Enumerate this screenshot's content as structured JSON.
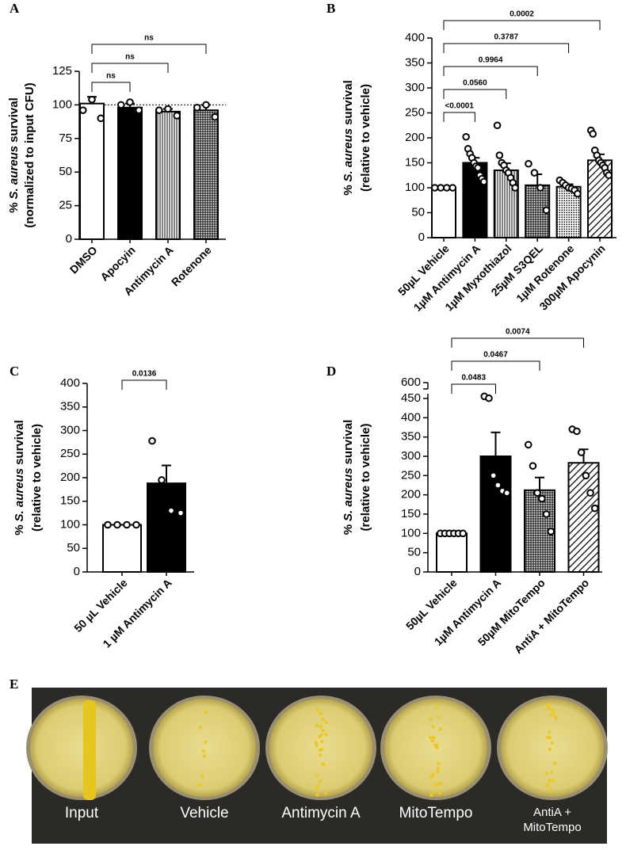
{
  "chart_data": [
    {
      "type": "bar",
      "panel": "A",
      "ylabel": [
        "%",
        "S. aureus",
        "survival"
      ],
      "ylabel2": "(normalized to input CFU)",
      "categories": [
        "DMSO",
        "Apocyin",
        "Antimycin A",
        "Rotenone"
      ],
      "values": [
        101,
        98,
        95,
        96
      ],
      "errors": [
        5,
        3,
        2,
        4
      ],
      "points": [
        [
          96,
          104,
          90
        ],
        [
          100,
          102,
          96
        ],
        [
          96,
          97,
          92
        ],
        [
          98,
          100,
          91
        ]
      ],
      "patterns": [
        "white",
        "black",
        "vlines",
        "checker"
      ],
      "ylim": [
        0,
        125
      ],
      "yticks": [
        0,
        25,
        50,
        75,
        100,
        125
      ],
      "ref_line": 100,
      "comparisons": [
        {
          "pair": [
            0,
            1
          ],
          "label": "ns"
        },
        {
          "pair": [
            0,
            2
          ],
          "label": "ns"
        },
        {
          "pair": [
            0,
            3
          ],
          "label": "ns"
        }
      ]
    },
    {
      "type": "bar",
      "panel": "B",
      "ylabel": [
        "%",
        "S. aureus",
        "survival"
      ],
      "ylabel2": "(relative to vehicle)",
      "categories": [
        "50µL Vehicle",
        "1µM Antimycin A",
        "1µM Myxothiazol",
        "25µM S3QEL",
        "1µM Rotenone",
        "300µM Apocynin"
      ],
      "values": [
        100,
        150,
        135,
        105,
        102,
        155
      ],
      "errors": [
        0,
        10,
        14,
        22,
        5,
        12
      ],
      "points": [
        [
          100,
          100,
          100,
          100
        ],
        [
          202,
          178,
          168,
          160,
          150,
          143,
          140,
          125,
          118,
          112
        ],
        [
          225,
          165,
          150,
          145,
          135,
          130,
          120,
          110,
          100
        ],
        [
          148,
          130,
          100,
          55
        ],
        [
          115,
          110,
          105,
          100,
          98,
          95,
          88
        ],
        [
          215,
          208,
          175,
          165,
          155,
          150,
          145,
          140,
          130,
          125
        ]
      ],
      "patterns": [
        "white",
        "black",
        "vlines",
        "checker",
        "dots",
        "hatch"
      ],
      "ylim": [
        0,
        400
      ],
      "yticks": [
        0,
        50,
        100,
        150,
        200,
        250,
        300,
        350,
        400
      ],
      "comparisons": [
        {
          "pair": [
            0,
            1
          ],
          "label": "<0.0001"
        },
        {
          "pair": [
            0,
            2
          ],
          "label": "0.0560"
        },
        {
          "pair": [
            0,
            3
          ],
          "label": "0.9964"
        },
        {
          "pair": [
            0,
            4
          ],
          "label": "0.3787"
        },
        {
          "pair": [
            0,
            5
          ],
          "label": "0.0002"
        }
      ]
    },
    {
      "type": "bar",
      "panel": "C",
      "ylabel": [
        "%",
        "S. aureus",
        "survival"
      ],
      "ylabel2": "(relative to vehicle)",
      "categories": [
        "50 µL Vehicle",
        "1 µM Antimycin A"
      ],
      "values": [
        100,
        188
      ],
      "errors": [
        0,
        38
      ],
      "points": [
        [
          100,
          100,
          100,
          100
        ],
        [
          278,
          195,
          130,
          125
        ]
      ],
      "patterns": [
        "white",
        "black"
      ],
      "ylim": [
        0,
        400
      ],
      "yticks": [
        0,
        50,
        100,
        150,
        200,
        250,
        300,
        350,
        400
      ],
      "comparisons": [
        {
          "pair": [
            0,
            1
          ],
          "label": "0.0136"
        }
      ]
    },
    {
      "type": "bar",
      "panel": "D",
      "ylabel": [
        "%",
        "S. aureus",
        "survival"
      ],
      "ylabel2": "(relative to vehicle)",
      "categories": [
        "50µL Vehicle",
        "1µM Antimycin A",
        "50µM MitoTempo",
        "AntiA + MitoTempo"
      ],
      "values": [
        100,
        300,
        212,
        283
      ],
      "errors": [
        0,
        62,
        33,
        35
      ],
      "points": [
        [
          100,
          100,
          100,
          100,
          100,
          100
        ],
        [
          470,
          452,
          250,
          225,
          210,
          205
        ],
        [
          330,
          275,
          205,
          190,
          150,
          105
        ],
        [
          370,
          365,
          310,
          250,
          205,
          165
        ]
      ],
      "patterns": [
        "white",
        "black",
        "checker",
        "hatch"
      ],
      "ylim": [
        0,
        600
      ],
      "yticks": [
        0,
        50,
        100,
        150,
        200,
        250,
        300,
        350,
        400,
        450,
        600
      ],
      "axis_break": true,
      "comparisons": [
        {
          "pair": [
            0,
            1
          ],
          "label": "0.0483"
        },
        {
          "pair": [
            0,
            2
          ],
          "label": "0.0467"
        },
        {
          "pair": [
            0,
            3
          ],
          "label": "0.0074"
        }
      ]
    }
  ],
  "photo_panel": {
    "panel": "E",
    "labels": [
      [
        "Input"
      ],
      [
        "Vehicle"
      ],
      [
        "Antimycin A"
      ],
      [
        "MitoTempo"
      ],
      [
        "AntiA +",
        "MitoTempo"
      ]
    ]
  }
}
